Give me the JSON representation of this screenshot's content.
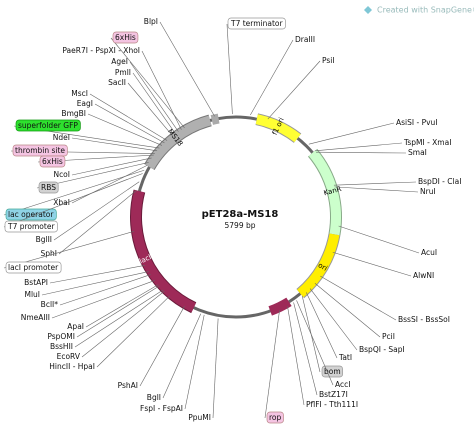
{
  "title": "pET28a-MS18",
  "length": "5799 bp",
  "watermark": "Created with SnapGene®",
  "map_features": [
    "MS18",
    "f1 ori",
    "KanR",
    "ori",
    "lacI"
  ],
  "sites": [
    "BlpI",
    "T7 terminator",
    "6xHis",
    "PaeR7I - PspXI - XhoI",
    "AgeI",
    "PmlI",
    "SacII",
    "MscI",
    "EagI",
    "BmgBI",
    "superfolder GFP",
    "NdeI",
    "thrombin site",
    "6xHis",
    "NcoI",
    "RBS",
    "XbaI",
    "lac operator",
    "T7 promoter",
    "BglII",
    "SphI",
    "lacI promoter",
    "BstAPI",
    "MluI",
    "BclI*",
    "NmeAIII",
    "ApaI",
    "PspOMI",
    "BssHII",
    "EcoRV",
    "HincII - HpaI",
    "PshAI",
    "BglI",
    "FspI - FspAI",
    "PpuMI",
    "rop",
    "DraIII",
    "PsiI",
    "AsiSI - PvuI",
    "TspMI - XmaI",
    "SmaI",
    "BspDI - ClaI",
    "NruI",
    "AcuI",
    "AlwNI",
    "BssSI - BssSoI",
    "PciI",
    "BspQI - SapI",
    "TatI",
    "bom",
    "AccI",
    "BstZ17I",
    "PflFI - Tth111I"
  ]
}
